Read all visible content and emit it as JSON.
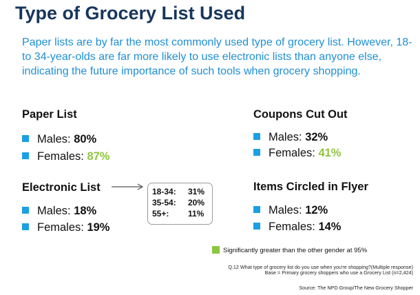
{
  "title": "Type of Grocery List Used",
  "intro": "Paper lists are by far the most commonly used type of grocery list. However, 18- to 34-year-olds are far more likely to use electronic lists than anyone else, indicating the future importance of such tools when grocery shopping.",
  "paper": {
    "heading": "Paper List",
    "males_label": "Males:",
    "males_value": "80%",
    "females_label": "Females:",
    "females_value": "87%"
  },
  "coupons": {
    "heading": "Coupons Cut Out",
    "males_label": "Males:",
    "males_value": "32%",
    "females_label": "Females:",
    "females_value": "41%"
  },
  "electronic": {
    "heading": "Electronic List",
    "males_label": "Males:",
    "males_value": "18%",
    "females_label": "Females:",
    "females_value": "19%",
    "age_breakdown": [
      {
        "label": "18-34:",
        "value": "31%"
      },
      {
        "label": "35-54:",
        "value": "20%"
      },
      {
        "label": "55+:",
        "value": "11%"
      }
    ]
  },
  "flyer": {
    "heading": "Items Circled in Flyer",
    "males_label": "Males:",
    "males_value": "12%",
    "females_label": "Females:",
    "females_value": "14%"
  },
  "legend": "Significantly greater than the other gender at 95%",
  "question": "Q.12 What type of grocery list do you use when you're shopping?(Multiple response)",
  "base": "Base = Primary grocery shoppers who use a Grocery List (n=2,424)",
  "source": "Source: The NPD Group/The New Grocery Shopper",
  "colors": {
    "title": "#17365d",
    "intro": "#1e8fd5",
    "bullet": "#1aa0e3",
    "significant": "#8dc63f"
  }
}
